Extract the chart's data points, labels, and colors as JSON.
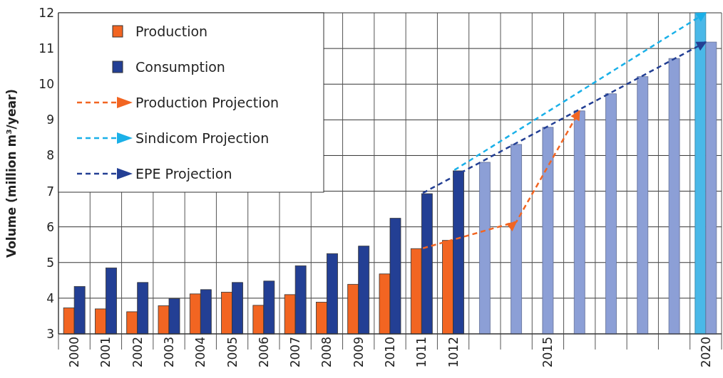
{
  "chart_data": {
    "type": "bar",
    "ylabel": "Volume (million m³/year)",
    "categories": [
      "2000",
      "2001",
      "2002",
      "2003",
      "2004",
      "2005",
      "2006",
      "2007",
      "2008",
      "2009",
      "2010",
      "1011",
      "1012",
      null,
      null,
      "2015",
      null,
      null,
      null,
      null,
      "2020"
    ],
    "series": [
      {
        "name": "Production",
        "color": "#f26522",
        "values": [
          3.73,
          3.7,
          3.62,
          3.79,
          4.12,
          4.17,
          3.8,
          4.1,
          3.89,
          4.39,
          4.68,
          5.39,
          5.62,
          null,
          null,
          null,
          null,
          null,
          null,
          null,
          null
        ]
      },
      {
        "color": "#4ab8e8",
        "values": [
          null,
          null,
          null,
          null,
          null,
          null,
          null,
          null,
          null,
          null,
          null,
          null,
          null,
          null,
          null,
          null,
          null,
          null,
          null,
          null,
          12
        ]
      },
      {
        "name": "Consumption",
        "color": "#233f94",
        "values": [
          4.33,
          4.85,
          4.44,
          3.99,
          4.24,
          4.44,
          4.48,
          4.91,
          5.25,
          5.46,
          6.24,
          6.93,
          7.57,
          null,
          null,
          null,
          null,
          null,
          null,
          null,
          null
        ]
      },
      {
        "color": "#8c9fd6",
        "values": [
          null,
          null,
          null,
          null,
          null,
          null,
          null,
          null,
          null,
          null,
          null,
          null,
          null,
          7.81,
          8.31,
          8.79,
          9.25,
          9.73,
          10.21,
          10.72,
          11.18
        ]
      },
      {
        "name": "Production Projection",
        "type": "line",
        "color": "#f26522",
        "values": [
          null,
          null,
          null,
          null,
          null,
          null,
          null,
          null,
          null,
          null,
          null,
          5.39,
          null,
          null,
          6.14,
          null,
          9.25,
          null,
          null,
          null,
          null
        ]
      },
      {
        "name": "Sindicom Projection",
        "type": "line",
        "color": "#1ab0e8",
        "values": [
          null,
          null,
          null,
          null,
          null,
          null,
          null,
          null,
          null,
          null,
          null,
          null,
          7.57,
          null,
          null,
          null,
          null,
          null,
          null,
          null,
          12
        ]
      },
      {
        "name": "EPE Projection",
        "type": "line",
        "color": "#233f94",
        "values": [
          null,
          null,
          null,
          null,
          null,
          null,
          null,
          null,
          null,
          null,
          null,
          6.93,
          null,
          null,
          null,
          null,
          null,
          null,
          null,
          null,
          11.18
        ]
      }
    ],
    "ylim": [
      3,
      12
    ],
    "yticks": [
      3,
      4,
      5,
      6,
      7,
      8,
      9,
      10,
      11,
      12
    ],
    "grid": true,
    "legend": "top left",
    "line_style": "dashed",
    "marker": "none"
  }
}
